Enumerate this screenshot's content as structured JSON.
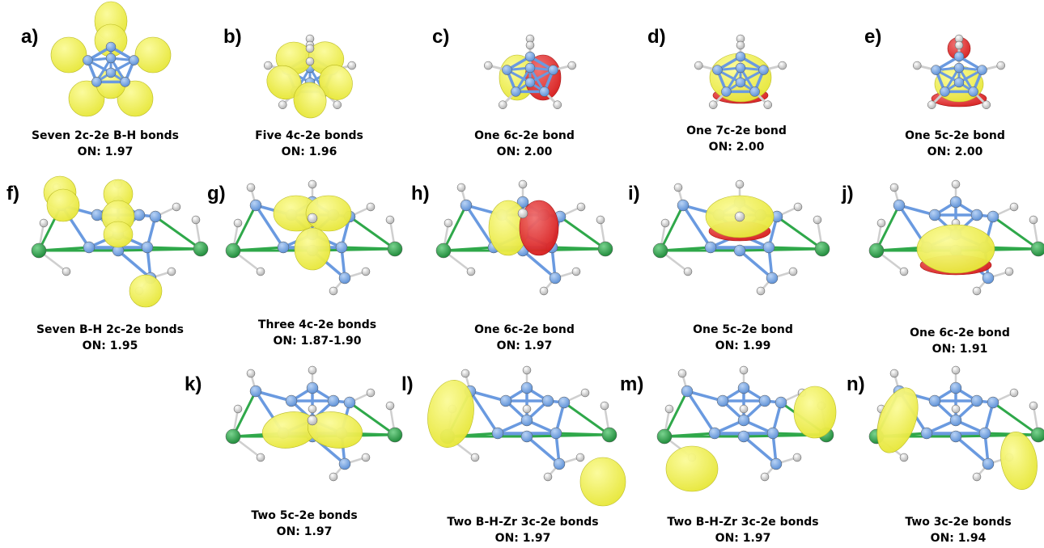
{
  "panels": [
    {
      "label": "a)",
      "caption": "Seven 2c-2e B-H bonds",
      "on": "ON: 1.97"
    },
    {
      "label": "b)",
      "caption": "Five 4c-2e bonds",
      "on": "ON: 1.96"
    },
    {
      "label": "c)",
      "caption": "One 6c-2e bond",
      "on": "ON: 2.00"
    },
    {
      "label": "d)",
      "caption": "One 7c-2e bond",
      "on": "ON: 2.00"
    },
    {
      "label": "e)",
      "caption": "One 5c-2e bond",
      "on": "ON: 2.00"
    },
    {
      "label": "f)",
      "caption": "Seven B-H 2c-2e bonds",
      "on": "ON: 1.95"
    },
    {
      "label": "g)",
      "caption": "Three 4c-2e bonds",
      "on": "ON: 1.87-1.90"
    },
    {
      "label": "h)",
      "caption": "One 6c-2e bond",
      "on": "ON: 1.97"
    },
    {
      "label": "i)",
      "caption": "One 5c-2e bond",
      "on": "ON: 1.99"
    },
    {
      "label": "j)",
      "caption": "One 6c-2e bond",
      "on": "ON: 1.91"
    },
    {
      "label": "k)",
      "caption": "Two 5c-2e bonds",
      "on": "ON: 1.97"
    },
    {
      "label": "l)",
      "caption": "Two B-H-Zr 3c-2e bonds",
      "on": "ON: 1.97"
    },
    {
      "label": "m)",
      "caption": "Two B-H-Zr 3c-2e bonds",
      "on": "ON: 1.97"
    },
    {
      "label": "n)",
      "caption": "Two 3c-2e bonds",
      "on": "ON: 1.94"
    }
  ],
  "colors": {
    "boron": "#5b8fd6",
    "bond": "#6a9ae0",
    "hydrogen": "#e8e8e8",
    "zirconium": "#1f8a3a",
    "zr_bond": "#2fa84a",
    "lobe_yellow": "#e8e83a",
    "lobe_red": "#d81e1e"
  }
}
